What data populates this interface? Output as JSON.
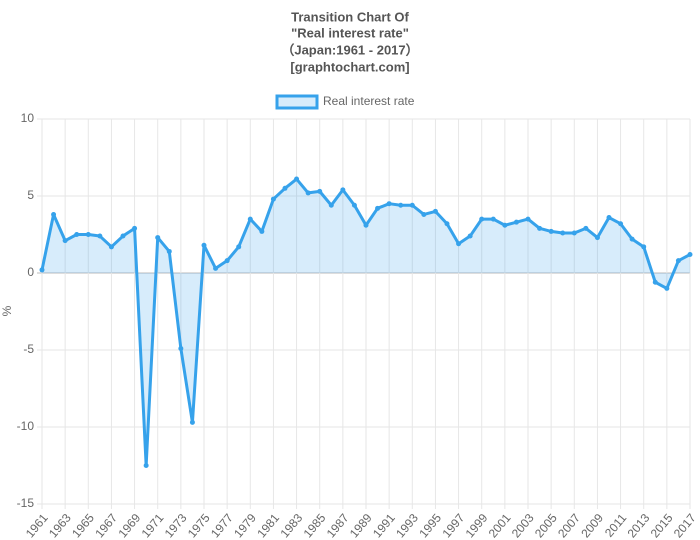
{
  "chart_data": {
    "type": "line",
    "title": [
      "Transition Chart Of",
      "\"Real interest rate\"",
      "（Japan:1961 - 2017）",
      "[graphtochart.com]"
    ],
    "y_label": "%",
    "x": [
      1961,
      1962,
      1963,
      1964,
      1965,
      1966,
      1967,
      1968,
      1969,
      1970,
      1971,
      1972,
      1973,
      1974,
      1975,
      1976,
      1977,
      1978,
      1979,
      1980,
      1981,
      1982,
      1983,
      1984,
      1985,
      1986,
      1987,
      1988,
      1989,
      1990,
      1991,
      1992,
      1993,
      1994,
      1995,
      1996,
      1997,
      1998,
      1999,
      2000,
      2001,
      2002,
      2003,
      2004,
      2005,
      2006,
      2007,
      2008,
      2009,
      2010,
      2011,
      2012,
      2013,
      2014,
      2015,
      2016,
      2017
    ],
    "series": [
      {
        "name": "Real interest rate",
        "color": "#36a2eb",
        "values": [
          0.2,
          3.8,
          2.1,
          2.5,
          2.5,
          2.4,
          1.7,
          2.4,
          2.9,
          -12.5,
          2.3,
          1.4,
          -4.9,
          -9.7,
          1.8,
          0.3,
          0.8,
          1.7,
          3.5,
          2.7,
          4.8,
          5.5,
          6.1,
          5.2,
          5.3,
          4.4,
          5.4,
          4.4,
          3.1,
          4.2,
          4.5,
          4.4,
          4.4,
          3.8,
          4.0,
          3.2,
          1.9,
          2.4,
          3.5,
          3.5,
          3.1,
          3.3,
          3.5,
          2.9,
          2.7,
          2.6,
          2.6,
          2.9,
          2.3,
          3.6,
          3.2,
          2.2,
          1.7,
          -0.6,
          -1.0,
          0.8,
          1.2
        ]
      }
    ],
    "xlim": [
      1961,
      2017
    ],
    "xticks": [
      1961,
      1963,
      1965,
      1967,
      1969,
      1971,
      1973,
      1975,
      1977,
      1979,
      1981,
      1983,
      1985,
      1987,
      1989,
      1991,
      1993,
      1995,
      1997,
      1999,
      2001,
      2003,
      2005,
      2007,
      2009,
      2011,
      2013,
      2015,
      2017
    ],
    "ylim": [
      -15,
      10
    ],
    "yticks": [
      -15,
      -10,
      -5,
      0,
      5,
      10
    ],
    "grid": true,
    "legend": "top"
  }
}
